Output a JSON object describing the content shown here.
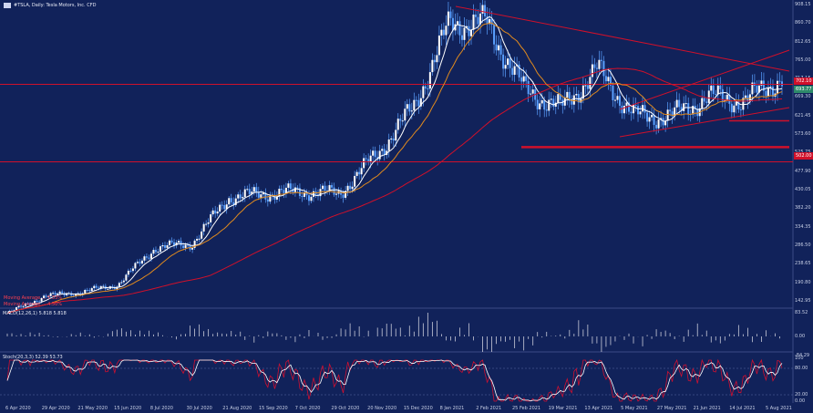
{
  "header": {
    "title": "#TSLA, Daily:  Tesla Motors, Inc.  CFD",
    "macd_label": "MACD(12,26,1) 5.818 5.818",
    "stoch_label": "Stoch(20,3,3) 52.39 53.73",
    "ma_legend_1": "Moving Average ... 5.33%",
    "ma_legend_2": "Moving Average ... 4.50%"
  },
  "price_axis": {
    "ticks": [
      "908.15",
      "860.70",
      "812.65",
      "765.00",
      "717.15",
      "669.30",
      "621.45",
      "573.60",
      "525.75",
      "477.90",
      "430.05",
      "382.20",
      "334.35",
      "286.50",
      "238.65",
      "190.80",
      "142.95"
    ],
    "current_tag": "693.77",
    "current_tag_color": "#2d8a6a",
    "red_tag": "702.10",
    "red_tag2": "502.00"
  },
  "macd_axis": {
    "ticks": [
      "83.52",
      "0.00",
      "-84.29"
    ]
  },
  "stoch_axis": {
    "ticks": [
      "100",
      "80.00",
      "20.00",
      "0.00"
    ]
  },
  "time_axis": {
    "labels": [
      "6 Apr 2020",
      "29 Apr 2020",
      "21 May 2020",
      "15 Jun 2020",
      "8 Jul 2020",
      "30 Jul 2020",
      "21 Aug 2020",
      "15 Sep 2020",
      "7 Oct 2020",
      "29 Oct 2020",
      "20 Nov 2020",
      "15 Dec 2020",
      "8 Jan 2021",
      "2 Feb 2021",
      "25 Feb 2021",
      "19 Mar 2021",
      "13 Apr 2021",
      "5 May 2021",
      "27 May 2021",
      "21 Jun 2021",
      "14 Jul 2021",
      "5 Aug 2021"
    ]
  },
  "colors": {
    "background": "#11225a",
    "candle": "#5aa0ff",
    "ma_fast": "#ffffff",
    "ma_mid": "#e08a1e",
    "ma_slow": "#d0102a",
    "levels": "#d0102a",
    "stoch_k": "#d01030",
    "stoch_d": "#ffffff",
    "macd": "#c9cbd9"
  },
  "chart_data": {
    "type": "line",
    "symbol": "#TSLA",
    "timeframe": "Daily",
    "x": [
      "6 Apr 2020",
      "29 Apr 2020",
      "21 May 2020",
      "15 Jun 2020",
      "8 Jul 2020",
      "30 Jul 2020",
      "21 Aug 2020",
      "15 Sep 2020",
      "7 Oct 2020",
      "29 Oct 2020",
      "20 Nov 2020",
      "15 Dec 2020",
      "8 Jan 2021",
      "2 Feb 2021",
      "25 Feb 2021",
      "19 Mar 2021",
      "13 Apr 2021",
      "5 May 2021",
      "27 May 2021",
      "21 Jun 2021",
      "14 Jul 2021",
      "5 Aug 2021"
    ],
    "series": [
      {
        "values": [
          110,
          155,
          165,
          185,
          280,
          290,
          410,
          420,
          425,
          420,
          520,
          640,
          860,
          860,
          690,
          640,
          740,
          620,
          620,
          670,
          660,
          720
        ]
      }
    ],
    "ylim": [
      142.95,
      908.15
    ],
    "horizontal_levels": [
      702.1,
      502,
      540,
      608
    ],
    "grid": false
  }
}
